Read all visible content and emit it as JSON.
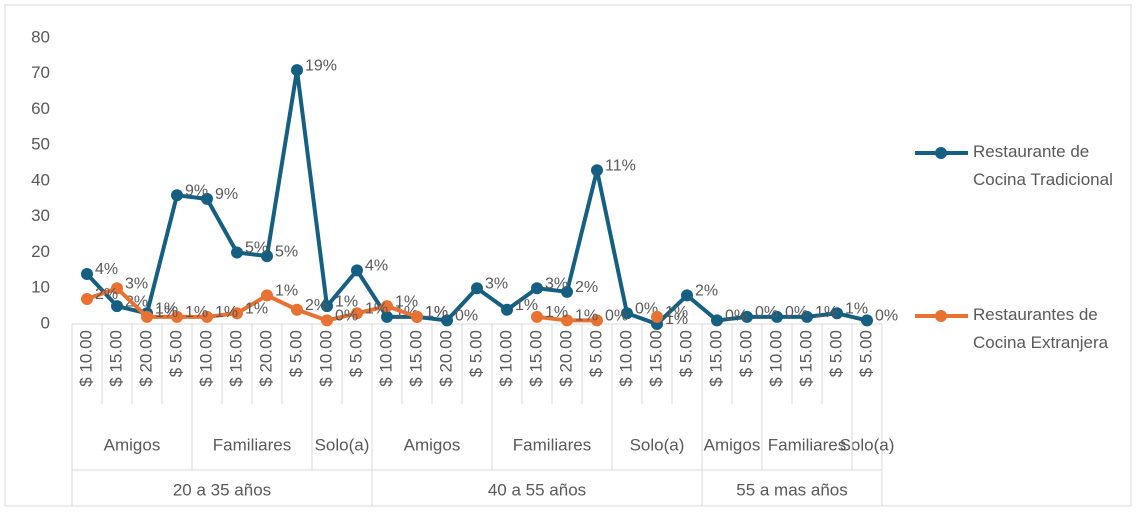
{
  "chart_data": {
    "type": "line",
    "categories": [
      "$ 10.00",
      "$ 15.00",
      "$ 20.00",
      "$ 5.00",
      "$ 10.00",
      "$ 15.00",
      "$ 20.00",
      "$ 5.00",
      "$ 10.00",
      "$ 5.00",
      "$ 10.00",
      "$ 15.00",
      "$ 20.00",
      "$ 5.00",
      "$ 10.00",
      "$ 15.00",
      "$ 20.00",
      "$ 5.00",
      "$ 10.00",
      "$ 15.00",
      "$ 5.00",
      "$ 15.00",
      "$ 5.00",
      "$ 10.00",
      "$ 15.00",
      "$ 5.00",
      "$ 5.00"
    ],
    "subgroups": [
      {
        "label": "Amigos",
        "span": 4
      },
      {
        "label": "Familiares",
        "span": 4
      },
      {
        "label": "Solo(a)",
        "span": 2
      },
      {
        "label": "Amigos",
        "span": 4
      },
      {
        "label": "Familiares",
        "span": 4
      },
      {
        "label": "Solo(a)",
        "span": 3
      },
      {
        "label": "Amigos",
        "span": 2
      },
      {
        "label": "Familiares",
        "span": 3
      },
      {
        "label": "Solo(a)",
        "span": 1
      }
    ],
    "groups": [
      {
        "label": "20 a 35 años",
        "span": 10
      },
      {
        "label": "40 a 55 años",
        "span": 11
      },
      {
        "label": "55 a mas años",
        "span": 6
      }
    ],
    "series": [
      {
        "name": "Restaurante de Cocina Tradicional",
        "color": "#156082",
        "values": [
          14,
          5,
          3,
          36,
          35,
          20,
          19,
          71,
          5,
          15,
          2,
          2,
          1,
          10,
          4,
          10,
          9,
          43,
          3,
          0,
          8,
          1,
          2,
          2,
          2,
          3,
          1
        ],
        "percent_labels": [
          "4%",
          "2%",
          "1%",
          "9%",
          "9%",
          "5%",
          "5%",
          "19%",
          "1%",
          "4%",
          "1%",
          "1%",
          "0%",
          "3%",
          "1%",
          "3%",
          "2%",
          "11%",
          "0%",
          "1%",
          "2%",
          "0%",
          "0%",
          "0%",
          "1%",
          "1%",
          "0%"
        ]
      },
      {
        "name": "Restaurantes de Cocina Extranjera",
        "color": "#e97132",
        "values": [
          7,
          10,
          2,
          2,
          2,
          3,
          8,
          4,
          1,
          3,
          5,
          2,
          null,
          null,
          null,
          2,
          1,
          1,
          null,
          2,
          null,
          null,
          null,
          null,
          null,
          null,
          null
        ],
        "percent_labels": [
          "2%",
          "3%",
          "1%",
          "1%",
          "1%",
          "1%",
          "1%",
          "2%",
          "0%",
          "1%",
          "1%",
          "1%",
          null,
          null,
          null,
          "1%",
          "1%",
          "0%",
          null,
          "1%",
          null,
          null,
          null,
          null,
          null,
          null,
          null
        ]
      }
    ],
    "ylim": [
      0,
      80
    ],
    "yticks": [
      0,
      10,
      20,
      30,
      40,
      50,
      60,
      70,
      80
    ],
    "legend": "right"
  }
}
